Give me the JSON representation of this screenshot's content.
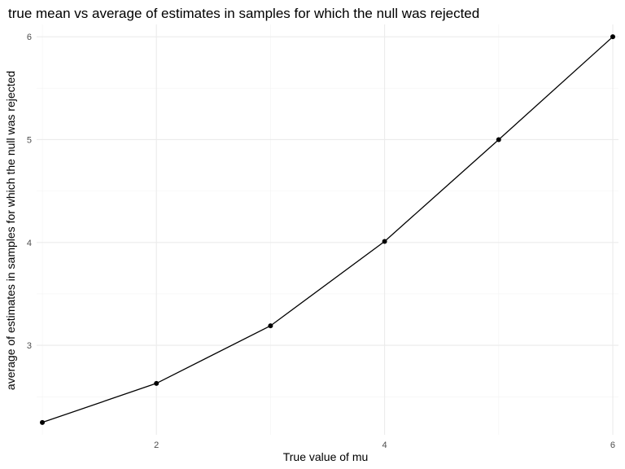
{
  "chart_data": {
    "type": "line",
    "title": "true mean vs average of estimates in samples for which the null was rejected",
    "xlabel": "True value of mu",
    "ylabel": "average of estimates in samples for which the null was rejected",
    "x": [
      1,
      2,
      3,
      4,
      5,
      6
    ],
    "y": [
      2.25,
      2.63,
      3.19,
      4.01,
      5.0,
      6.0
    ],
    "xlim": [
      0.95,
      6.05
    ],
    "ylim": [
      2.13,
      6.12
    ],
    "x_ticks": [
      2,
      4,
      6
    ],
    "y_ticks": [
      3,
      4,
      5,
      6
    ],
    "x_tick_labels": [
      "2",
      "4",
      "6"
    ],
    "y_tick_labels": [
      "3",
      "4",
      "5",
      "6"
    ],
    "grid": true,
    "legend": "none",
    "colors": {
      "line": "#000000",
      "grid": "#ebebeb",
      "background": "#ffffff"
    }
  }
}
